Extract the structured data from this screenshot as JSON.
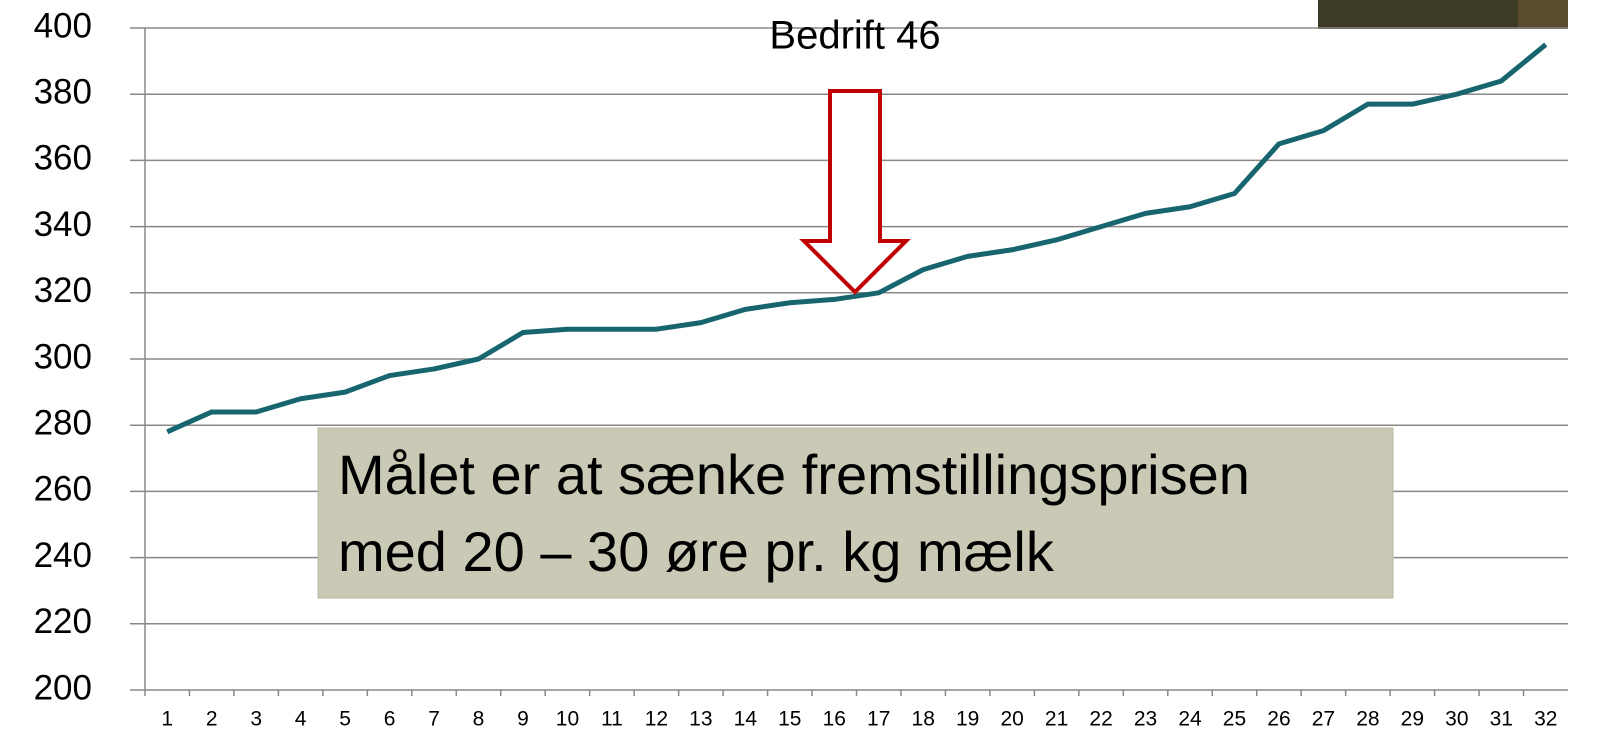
{
  "chart_data": {
    "type": "line",
    "categories": [
      "1",
      "2",
      "3",
      "4",
      "5",
      "6",
      "7",
      "8",
      "9",
      "10",
      "11",
      "12",
      "13",
      "14",
      "15",
      "16",
      "17",
      "18",
      "19",
      "20",
      "21",
      "22",
      "23",
      "24",
      "25",
      "26",
      "27",
      "28",
      "29",
      "30",
      "31",
      "32"
    ],
    "series": [
      {
        "color": "#17666f",
        "values": [
          278,
          284,
          284,
          288,
          290,
          295,
          297,
          300,
          308,
          309,
          309,
          309,
          311,
          315,
          317,
          318,
          320,
          327,
          331,
          333,
          336,
          340,
          344,
          346,
          350,
          365,
          369,
          377,
          377,
          380,
          384,
          395
        ]
      }
    ],
    "ylim": [
      200,
      400
    ],
    "yticks": [
      200,
      220,
      240,
      260,
      280,
      300,
      320,
      340,
      360,
      380,
      400
    ],
    "grid": true,
    "arrow_label": "Bedrift 46",
    "callout": [
      "Målet er at sænke fremstillingsprisen",
      "med 20 – 30 øre pr. kg mælk"
    ]
  }
}
